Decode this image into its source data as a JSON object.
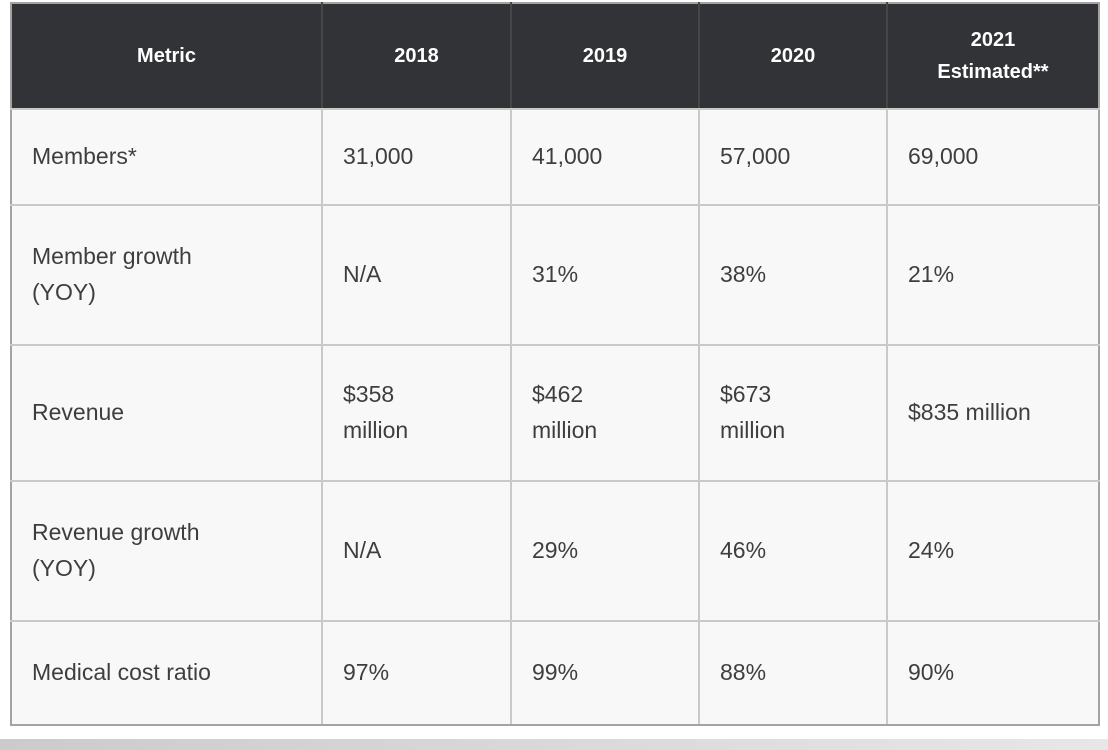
{
  "colors": {
    "header_bg": "#313336",
    "header_text": "#ffffff",
    "body_bg": "#f8f8f9",
    "body_text": "#3e3e41",
    "border_light": "#c9c9c9",
    "border_dark": "#474747",
    "border_outer": "#a3a3a3"
  },
  "chart_data": {
    "type": "table",
    "columns": [
      "Metric",
      "2018",
      "2019",
      "2020",
      "2021\nEstimated**"
    ],
    "rows": [
      {
        "cells": [
          "Members*",
          "31,000",
          "41,000",
          "57,000",
          "69,000"
        ]
      },
      {
        "cells": [
          "Member growth\n(YOY)",
          "N/A",
          "31%",
          "38%",
          "21%"
        ]
      },
      {
        "cells": [
          "Revenue",
          "$358\nmillion",
          "$462\nmillion",
          "$673\nmillion",
          "$835 million"
        ]
      },
      {
        "cells": [
          "Revenue growth\n(YOY)",
          "N/A",
          "29%",
          "46%",
          "24%"
        ]
      },
      {
        "cells": [
          "Medical cost ratio",
          "97%",
          "99%",
          "88%",
          "90%"
        ]
      }
    ]
  }
}
